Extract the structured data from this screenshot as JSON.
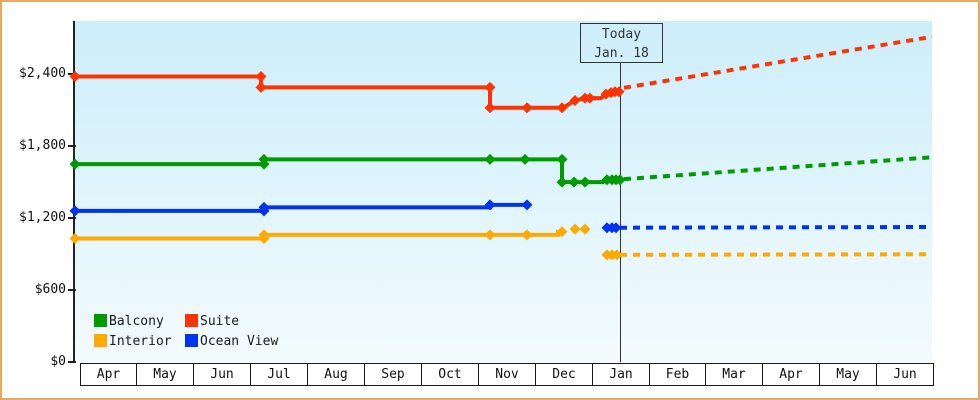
{
  "colors": {
    "frame_border": "#e9a75f",
    "plot_bg_top": "#cdeefb",
    "plot_bg_bottom": "#f3fbfe",
    "axis": "#222222",
    "today_line": "#333333",
    "label_text": "#111111"
  },
  "chart_data": {
    "type": "line",
    "axis": {
      "y_ticks": [
        {
          "label": "$2,400",
          "value": 2400
        },
        {
          "label": "$1,800",
          "value": 1800
        },
        {
          "label": "$1,200",
          "value": 1200
        },
        {
          "label": "$600",
          "value": 600
        },
        {
          "label": "$0",
          "value": 0
        }
      ],
      "months": [
        "Apr",
        "May",
        "Jun",
        "Jul",
        "Aug",
        "Sep",
        "Oct",
        "Nov",
        "Dec",
        "Jan",
        "Feb",
        "Mar",
        "Apr",
        "May",
        "Jun"
      ],
      "ylim": [
        0,
        2900
      ],
      "grid": false
    },
    "today": {
      "line1": "Today",
      "line2": "Jan. 18",
      "x": 618
    },
    "legend": [
      {
        "label": "Balcony",
        "color": "#009b00"
      },
      {
        "label": "Suite",
        "color": "#ff3300"
      },
      {
        "label": "Interior",
        "color": "#ffaa00"
      },
      {
        "label": "Ocean View",
        "color": "#0033ee"
      }
    ],
    "series": [
      {
        "name": "Interior",
        "color": "#ffaa00",
        "solid": [
          [
            73,
            1029
          ],
          [
            262,
            1029
          ],
          [
            262,
            1059
          ],
          [
            556,
            1059
          ],
          [
            556,
            1085
          ],
          [
            561,
            1085
          ]
        ],
        "dots": [
          [
            73,
            1029
          ],
          [
            262,
            1029
          ],
          [
            262,
            1059
          ],
          [
            488,
            1059
          ],
          [
            525,
            1059
          ],
          [
            560,
            1085
          ],
          [
            573,
            1107
          ],
          [
            583,
            1107
          ],
          [
            605,
            893
          ],
          [
            610,
            893
          ],
          [
            615,
            893
          ]
        ],
        "dashed": [
          [
            618,
            893
          ],
          [
            930,
            898
          ]
        ]
      },
      {
        "name": "Ocean View",
        "color": "#0033ee",
        "solid": [
          [
            73,
            1259
          ],
          [
            262,
            1259
          ],
          [
            262,
            1289
          ],
          [
            488,
            1289
          ],
          [
            488,
            1309
          ],
          [
            525,
            1309
          ]
        ],
        "dots": [
          [
            73,
            1259
          ],
          [
            262,
            1259
          ],
          [
            262,
            1289
          ],
          [
            488,
            1309
          ],
          [
            525,
            1309
          ],
          [
            605,
            1119
          ],
          [
            610,
            1119
          ],
          [
            614,
            1119
          ]
        ],
        "dashed": [
          [
            618,
            1119
          ],
          [
            930,
            1125
          ]
        ]
      },
      {
        "name": "Balcony",
        "color": "#009b00",
        "solid": [
          [
            73,
            1649
          ],
          [
            262,
            1649
          ],
          [
            262,
            1689
          ],
          [
            560,
            1689
          ],
          [
            560,
            1499
          ],
          [
            601,
            1499
          ],
          [
            605,
            1519
          ],
          [
            618,
            1519
          ]
        ],
        "dots": [
          [
            73,
            1649
          ],
          [
            262,
            1649
          ],
          [
            262,
            1689
          ],
          [
            488,
            1689
          ],
          [
            523,
            1689
          ],
          [
            560,
            1689
          ],
          [
            560,
            1499
          ],
          [
            572,
            1499
          ],
          [
            583,
            1499
          ],
          [
            605,
            1519
          ],
          [
            610,
            1519
          ],
          [
            614,
            1519
          ],
          [
            618,
            1519
          ]
        ],
        "dashed": [
          [
            622,
            1524
          ],
          [
            930,
            1706
          ]
        ]
      },
      {
        "name": "Suite",
        "color": "#ff3300",
        "solid": [
          [
            73,
            2379
          ],
          [
            259,
            2379
          ],
          [
            259,
            2289
          ],
          [
            488,
            2289
          ],
          [
            488,
            2119
          ],
          [
            561,
            2119
          ],
          [
            573,
            2179
          ],
          [
            583,
            2199
          ],
          [
            599,
            2199
          ],
          [
            604,
            2232
          ],
          [
            609,
            2245
          ],
          [
            617,
            2252
          ]
        ],
        "dots": [
          [
            73,
            2379
          ],
          [
            259,
            2379
          ],
          [
            259,
            2289
          ],
          [
            488,
            2289
          ],
          [
            488,
            2119
          ],
          [
            525,
            2119
          ],
          [
            560,
            2119
          ],
          [
            573,
            2179
          ],
          [
            583,
            2199
          ],
          [
            588,
            2199
          ],
          [
            604,
            2232
          ],
          [
            609,
            2245
          ],
          [
            613,
            2252
          ],
          [
            617,
            2252
          ]
        ],
        "dashed": [
          [
            622,
            2285
          ],
          [
            930,
            2710
          ]
        ]
      }
    ]
  }
}
